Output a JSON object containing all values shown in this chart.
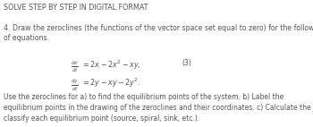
{
  "title": "SOLVE STEP BY STEP IN DIGITAL FORMAT",
  "question_number": "4.",
  "intro_text": "Draw the zeroclines (the functions of the vector space set equal to zero) for the following system\nof equations.",
  "eq_label": "(3)",
  "equation1_left": "$\\frac{dx}{dt}$",
  "equation1_right": "$= 2x - 2x^2 - xy,$",
  "equation2_left": "$\\frac{dy}{dt}$",
  "equation2_right": "$= 2y - xy - 2y^2.$",
  "footer_text": "Use the zeroclines for a) to find the equilibrium points of the system. b) Label the\nequilibrium points in the drawing of the zeroclines and their coordinates. c) Calculate the Jacobian and\nclassify each equilibrium point (source, spiral, sink, etc.).",
  "bg_color": "#ffffff",
  "text_color": "#555555",
  "title_fontsize": 5.8,
  "body_fontsize": 5.6,
  "eq_fontsize": 5.8,
  "footer_fontsize": 5.5
}
